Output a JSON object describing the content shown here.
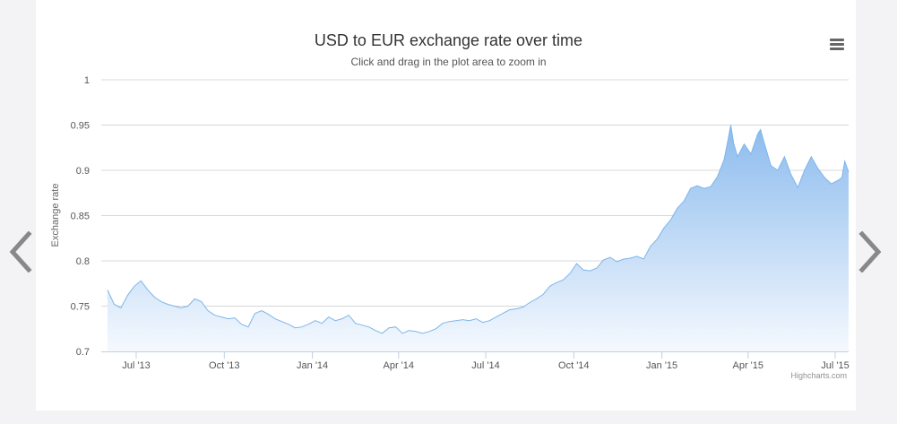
{
  "chart_data": {
    "type": "area",
    "title": "USD to EUR exchange rate over time",
    "subtitle": "Click and drag in the plot area to zoom in",
    "ylabel": "Exchange rate",
    "xlabel": "",
    "ylim": [
      0.7,
      1
    ],
    "y_ticks": [
      "1",
      "0.95",
      "0.9",
      "0.85",
      "0.8",
      "0.75",
      "0.7"
    ],
    "x_ticks": [
      "Jul '13",
      "Oct '13",
      "Jan '14",
      "Apr '14",
      "Jul '14",
      "Oct '14",
      "Jan '15",
      "Apr '15",
      "Jul '15"
    ],
    "grid": true,
    "legend": false,
    "series": [
      {
        "x": [
          "2013-06-01",
          "2013-06-08",
          "2013-06-15",
          "2013-06-22",
          "2013-06-29",
          "2013-07-06",
          "2013-07-13",
          "2013-07-20",
          "2013-07-27",
          "2013-08-03",
          "2013-08-10",
          "2013-08-17",
          "2013-08-24",
          "2013-08-31",
          "2013-09-07",
          "2013-09-14",
          "2013-09-21",
          "2013-09-28",
          "2013-10-05",
          "2013-10-12",
          "2013-10-19",
          "2013-10-26",
          "2013-11-02",
          "2013-11-09",
          "2013-11-16",
          "2013-11-23",
          "2013-11-30",
          "2013-12-07",
          "2013-12-14",
          "2013-12-21",
          "2013-12-28",
          "2014-01-04",
          "2014-01-11",
          "2014-01-18",
          "2014-01-25",
          "2014-02-01",
          "2014-02-08",
          "2014-02-15",
          "2014-02-22",
          "2014-03-01",
          "2014-03-08",
          "2014-03-15",
          "2014-03-22",
          "2014-03-29",
          "2014-04-05",
          "2014-04-12",
          "2014-04-19",
          "2014-04-26",
          "2014-05-03",
          "2014-05-10",
          "2014-05-17",
          "2014-05-24",
          "2014-05-31",
          "2014-06-07",
          "2014-06-14",
          "2014-06-21",
          "2014-06-28",
          "2014-07-05",
          "2014-07-12",
          "2014-07-19",
          "2014-07-26",
          "2014-08-02",
          "2014-08-09",
          "2014-08-16",
          "2014-08-23",
          "2014-08-30",
          "2014-09-06",
          "2014-09-13",
          "2014-09-20",
          "2014-09-27",
          "2014-10-04",
          "2014-10-11",
          "2014-10-18",
          "2014-10-25",
          "2014-11-01",
          "2014-11-08",
          "2014-11-15",
          "2014-11-22",
          "2014-11-29",
          "2014-12-06",
          "2014-12-13",
          "2014-12-20",
          "2014-12-27",
          "2015-01-03",
          "2015-01-10",
          "2015-01-17",
          "2015-01-24",
          "2015-01-31",
          "2015-02-07",
          "2015-02-14",
          "2015-02-21",
          "2015-02-28",
          "2015-03-07",
          "2015-03-11",
          "2015-03-14",
          "2015-03-17",
          "2015-03-21",
          "2015-03-28",
          "2015-04-04",
          "2015-04-11",
          "2015-04-14",
          "2015-04-18",
          "2015-04-25",
          "2015-05-02",
          "2015-05-09",
          "2015-05-16",
          "2015-05-23",
          "2015-05-30",
          "2015-06-06",
          "2015-06-13",
          "2015-06-20",
          "2015-06-27",
          "2015-07-04",
          "2015-07-08",
          "2015-07-11",
          "2015-07-15"
        ],
        "y": [
          0.768,
          0.752,
          0.748,
          0.762,
          0.772,
          0.778,
          0.768,
          0.76,
          0.755,
          0.752,
          0.75,
          0.748,
          0.75,
          0.758,
          0.755,
          0.745,
          0.74,
          0.738,
          0.736,
          0.737,
          0.73,
          0.727,
          0.742,
          0.745,
          0.741,
          0.736,
          0.733,
          0.73,
          0.726,
          0.727,
          0.73,
          0.734,
          0.731,
          0.738,
          0.734,
          0.736,
          0.74,
          0.731,
          0.729,
          0.727,
          0.723,
          0.72,
          0.726,
          0.727,
          0.72,
          0.723,
          0.722,
          0.72,
          0.722,
          0.725,
          0.731,
          0.733,
          0.734,
          0.735,
          0.734,
          0.736,
          0.732,
          0.734,
          0.738,
          0.742,
          0.746,
          0.747,
          0.749,
          0.754,
          0.758,
          0.763,
          0.772,
          0.776,
          0.779,
          0.786,
          0.797,
          0.79,
          0.789,
          0.792,
          0.801,
          0.804,
          0.799,
          0.802,
          0.803,
          0.805,
          0.802,
          0.816,
          0.824,
          0.836,
          0.845,
          0.858,
          0.866,
          0.88,
          0.883,
          0.88,
          0.882,
          0.893,
          0.912,
          0.933,
          0.95,
          0.93,
          0.915,
          0.929,
          0.918,
          0.94,
          0.945,
          0.93,
          0.905,
          0.9,
          0.915,
          0.895,
          0.881,
          0.9,
          0.915,
          0.902,
          0.892,
          0.885,
          0.889,
          0.892,
          0.91,
          0.898
        ]
      }
    ]
  },
  "colors": {
    "area_top": "#8cbbee",
    "area_bottom": "#f5f9fe",
    "line": "#7cb5ec",
    "grid": "#d8d8d8"
  },
  "icons": {
    "prev": "chevron-left-icon",
    "next": "chevron-right-icon",
    "menu": "hamburger-menu-icon"
  },
  "credits": "Highcharts.com"
}
